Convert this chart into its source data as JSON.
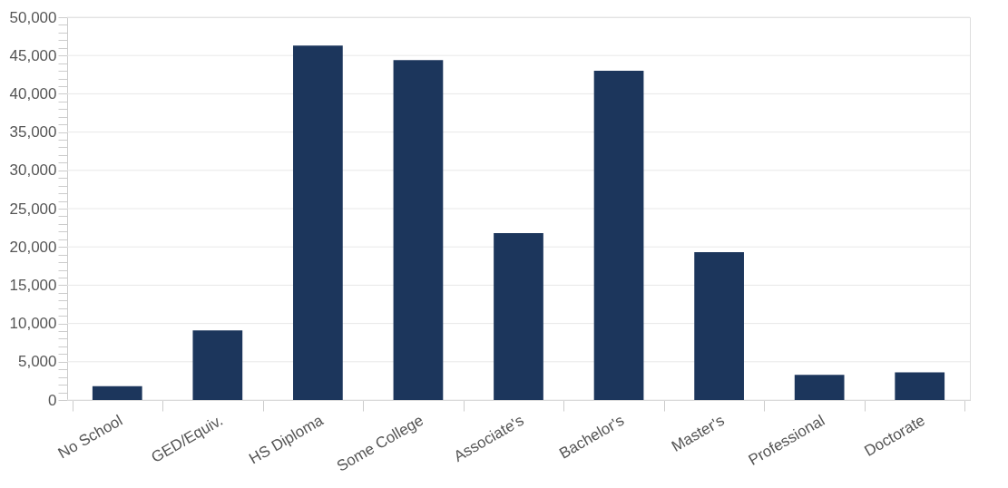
{
  "chart_data": {
    "type": "bar",
    "categories": [
      "No School",
      "GED/Equiv.",
      "HS Diploma",
      "Some College",
      "Associate's",
      "Bachelor's",
      "Master's",
      "Professional",
      "Doctorate"
    ],
    "values": [
      1800,
      9100,
      46300,
      44400,
      21800,
      43000,
      19300,
      3300,
      3600
    ],
    "color": "#1c365c",
    "ylim": [
      0,
      50000
    ],
    "yticks": [
      0,
      {
        "value": 5000,
        "label": "5,000"
      },
      {
        "value": 10000,
        "label": "10,000"
      },
      {
        "value": 15000,
        "label": "15,000"
      },
      {
        "value": 20000,
        "label": "20,000"
      },
      {
        "value": 25000,
        "label": "25,000"
      },
      {
        "value": 30000,
        "label": "30,000"
      },
      {
        "value": 35000,
        "label": "35,000"
      },
      {
        "value": 40000,
        "label": "40,000"
      },
      {
        "value": 45000,
        "label": "45,000"
      },
      {
        "value": 50000,
        "label": "50,000"
      },
      {
        "value": 1000,
        "label": null
      },
      {
        "value": 2000,
        "label": null
      },
      {
        "value": 3000,
        "label": null
      },
      {
        "value": 4000,
        "label": null
      },
      {
        "value": 6000,
        "label": null
      },
      {
        "value": 7000,
        "label": null
      },
      {
        "value": 8000,
        "label": null
      },
      {
        "value": 9000,
        "label": null
      },
      {
        "value": 11000,
        "label": null
      },
      {
        "value": 12000,
        "label": null
      },
      {
        "value": 13000,
        "label": null
      },
      {
        "value": 14000,
        "label": null
      },
      {
        "value": 16000,
        "label": null
      },
      {
        "value": 17000,
        "label": null
      },
      {
        "value": 18000,
        "label": null
      },
      {
        "value": 19000,
        "label": null
      },
      {
        "value": 21000,
        "label": null
      },
      {
        "value": 22000,
        "label": null
      },
      {
        "value": 23000,
        "label": null
      },
      {
        "value": 24000,
        "label": null
      },
      {
        "value": 26000,
        "label": null
      },
      {
        "value": 27000,
        "label": null
      },
      {
        "value": 28000,
        "label": null
      },
      {
        "value": 29000,
        "label": null
      },
      {
        "value": 31000,
        "label": null
      },
      {
        "value": 32000,
        "label": null
      },
      {
        "value": 33000,
        "label": null
      },
      {
        "value": 34000,
        "label": null
      },
      {
        "value": 36000,
        "label": null
      },
      {
        "value": 37000,
        "label": null
      },
      {
        "value": 38000,
        "label": null
      },
      {
        "value": 39000,
        "label": null
      },
      {
        "value": 41000,
        "label": null
      },
      {
        "value": 42000,
        "label": null
      },
      {
        "value": 43000,
        "label": null
      },
      {
        "value": 44000,
        "label": null
      },
      {
        "value": 46000,
        "label": null
      },
      {
        "value": 47000,
        "label": null
      },
      {
        "value": 48000,
        "label": null
      },
      {
        "value": 49000,
        "label": null
      }
    ],
    "grid": "y"
  }
}
